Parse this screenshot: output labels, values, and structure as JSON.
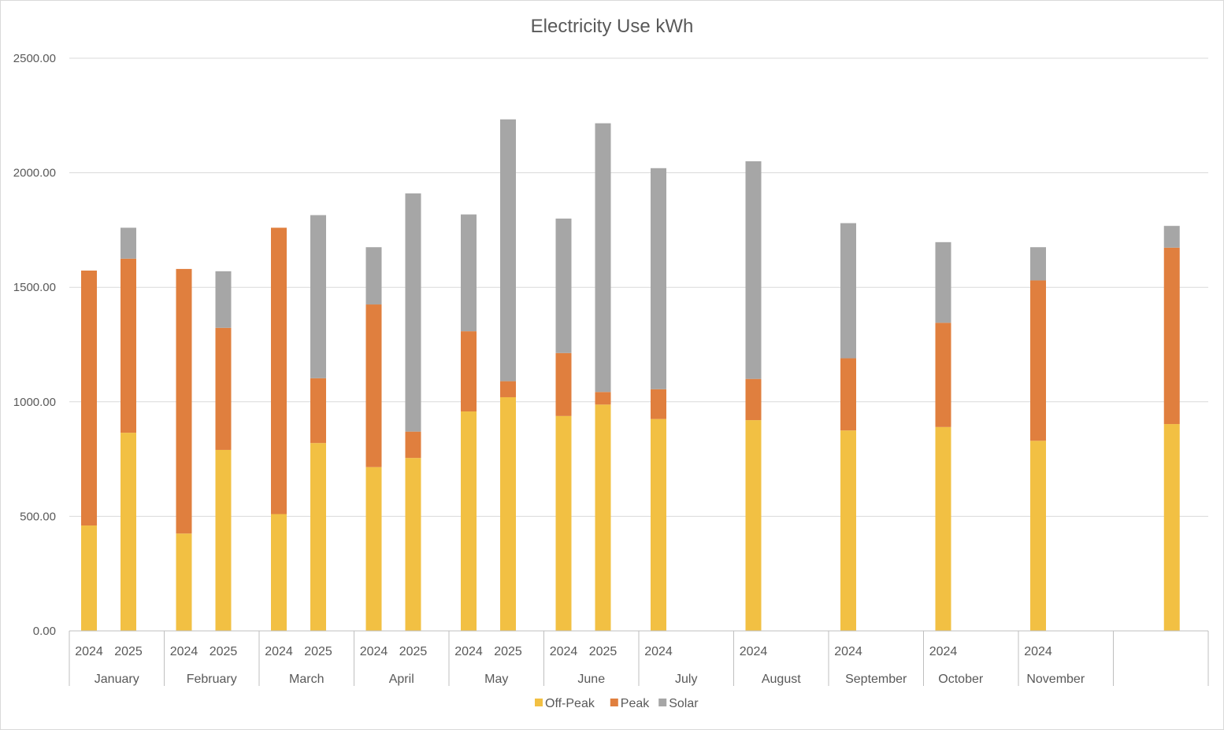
{
  "chart_data": {
    "type": "bar",
    "stacked": true,
    "title": "Electricity Use kWh",
    "xlabel": "",
    "ylabel": "",
    "ylim": [
      0,
      2500
    ],
    "y_ticks": [
      "0.00",
      "500.00",
      "1000.00",
      "1500.00",
      "2000.00",
      "2500.00"
    ],
    "grid": true,
    "legend_position": "bottom",
    "groups": [
      {
        "label": "January",
        "years": [
          "2024",
          "2025"
        ]
      },
      {
        "label": "February",
        "years": [
          "2024",
          "2025"
        ]
      },
      {
        "label": "March",
        "years": [
          "2024",
          "2025"
        ]
      },
      {
        "label": "April",
        "years": [
          "2024",
          "2025"
        ]
      },
      {
        "label": "May",
        "years": [
          "2024",
          "2025"
        ]
      },
      {
        "label": "June",
        "years": [
          "2024",
          "2025"
        ]
      },
      {
        "label": "July",
        "years": [
          "2024"
        ]
      },
      {
        "label": "August",
        "years": [
          "2024"
        ]
      },
      {
        "label": "September",
        "years": [
          "2024"
        ]
      },
      {
        "label": "October",
        "years": [
          "2024"
        ]
      },
      {
        "label": "November",
        "years": [
          "2024"
        ]
      },
      {
        "label": "",
        "years": []
      }
    ],
    "categories": [
      "January 2024",
      "January 2025",
      "February 2024",
      "February 2025",
      "March 2024",
      "March 2025",
      "April 2024",
      "April 2025",
      "May 2024",
      "May 2025",
      "June 2024",
      "June 2025",
      "July 2024",
      "August 2024",
      "September 2024",
      "October 2024",
      "November 2024",
      "(unlabelled)"
    ],
    "series": [
      {
        "name": "Off-Peak",
        "color": "#F2C043",
        "values": [
          460,
          865,
          425,
          790,
          510,
          820,
          715,
          755,
          958,
          1020,
          938,
          988,
          925,
          920,
          875,
          890,
          830,
          903
        ]
      },
      {
        "name": "Peak",
        "color": "#E07F3E",
        "values": [
          1113,
          760,
          1155,
          533,
          1250,
          283,
          710,
          115,
          350,
          70,
          275,
          55,
          130,
          180,
          315,
          455,
          700,
          770
        ]
      },
      {
        "name": "Solar",
        "color": "#A6A6A6",
        "values": [
          0,
          135,
          0,
          247,
          0,
          712,
          250,
          1040,
          510,
          1143,
          587,
          1173,
          965,
          950,
          590,
          352,
          145,
          95
        ]
      }
    ]
  }
}
